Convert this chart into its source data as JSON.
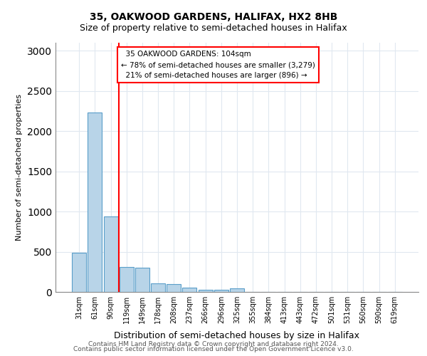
{
  "title1": "35, OAKWOOD GARDENS, HALIFAX, HX2 8HB",
  "title2": "Size of property relative to semi-detached houses in Halifax",
  "xlabel": "Distribution of semi-detached houses by size in Halifax",
  "ylabel": "Number of semi-detached properties",
  "categories": [
    "31sqm",
    "61sqm",
    "90sqm",
    "119sqm",
    "149sqm",
    "178sqm",
    "208sqm",
    "237sqm",
    "266sqm",
    "296sqm",
    "325sqm",
    "355sqm",
    "384sqm",
    "413sqm",
    "443sqm",
    "472sqm",
    "501sqm",
    "531sqm",
    "560sqm",
    "590sqm",
    "619sqm"
  ],
  "values": [
    490,
    2230,
    940,
    310,
    305,
    105,
    100,
    55,
    30,
    30,
    40,
    0,
    0,
    0,
    0,
    0,
    0,
    0,
    0,
    0,
    0
  ],
  "bar_color": "#b8d4e8",
  "bar_edge_color": "#5a9ec9",
  "annotation_text": "  35 OAKWOOD GARDENS: 104sqm\n← 78% of semi-detached houses are smaller (3,279)\n  21% of semi-detached houses are larger (896) →",
  "annotation_box_color": "white",
  "annotation_box_edge_color": "red",
  "red_line_x": 2.5,
  "ylim": [
    0,
    3100
  ],
  "yticks": [
    0,
    500,
    1000,
    1500,
    2000,
    2500,
    3000
  ],
  "footer1": "Contains HM Land Registry data © Crown copyright and database right 2024.",
  "footer2": "Contains public sector information licensed under the Open Government Licence v3.0.",
  "bg_color": "white",
  "grid_color": "#e0e8f0"
}
